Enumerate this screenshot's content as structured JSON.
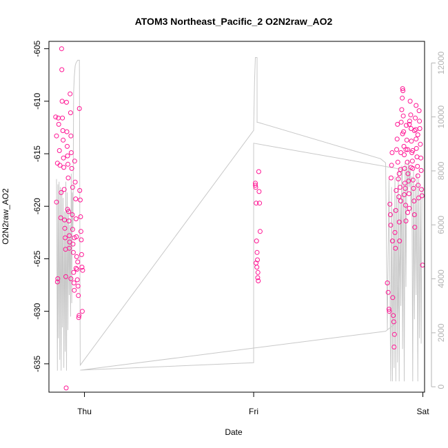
{
  "chart_data": {
    "type": "scatter",
    "title": "ATOM3 Northeast_Pacific_2 O2N2raw_AO2",
    "xlabel": "Date",
    "ylabel": "O2N2raw_AO2",
    "x_tick_labels": [
      "Thu",
      "Fri",
      "Sat"
    ],
    "x_tick_days": [
      1,
      2,
      3
    ],
    "xlim_days": [
      0.79,
      3.01
    ],
    "ylim": [
      -637.7,
      -604.3
    ],
    "y_ticks": [
      -605,
      -610,
      -615,
      -620,
      -625,
      -630,
      -635
    ],
    "y2lim": [
      -200,
      12800
    ],
    "y2_ticks": [
      0,
      2000,
      4000,
      6000,
      8000,
      10000,
      12000
    ],
    "grid": false,
    "colors": {
      "points": "#ff1493",
      "line": "#c8c8c8",
      "axis": "#000000",
      "axis2": "#b3b3b3"
    },
    "series": [
      {
        "kind": "points",
        "points": [
          [
            0.83,
            -611.5
          ],
          [
            0.835,
            -613.3
          ],
          [
            0.84,
            -615.9
          ],
          [
            0.835,
            -619.6
          ],
          [
            0.84,
            -627.2
          ],
          [
            0.842,
            -626.9
          ],
          [
            0.845,
            -611.6
          ],
          [
            0.848,
            -612.2
          ],
          [
            0.852,
            -614.7
          ],
          [
            0.855,
            -616.1
          ],
          [
            0.86,
            -621.1
          ],
          [
            0.862,
            -618.7
          ],
          [
            0.865,
            -605.0
          ],
          [
            0.866,
            -607.0
          ],
          [
            0.868,
            -610.0
          ],
          [
            0.87,
            -611.6
          ],
          [
            0.872,
            -612.8
          ],
          [
            0.874,
            -613.7
          ],
          [
            0.876,
            -615.4
          ],
          [
            0.878,
            -616.3
          ],
          [
            0.88,
            -618.4
          ],
          [
            0.882,
            -621.3
          ],
          [
            0.884,
            -622.1
          ],
          [
            0.886,
            -623.0
          ],
          [
            0.888,
            -624.1
          ],
          [
            0.89,
            -626.7
          ],
          [
            0.892,
            -637.3
          ],
          [
            0.894,
            -610.1
          ],
          [
            0.896,
            -612.9
          ],
          [
            0.898,
            -614.3
          ],
          [
            0.9,
            -615.2
          ],
          [
            0.902,
            -616.0
          ],
          [
            0.904,
            -617.3
          ],
          [
            0.906,
            -620.5
          ],
          [
            0.908,
            -621.4
          ],
          [
            0.91,
            -622.8
          ],
          [
            0.912,
            -623.4
          ],
          [
            0.915,
            -609.3
          ],
          [
            0.918,
            -611.1
          ],
          [
            0.92,
            -613.3
          ],
          [
            0.922,
            -614.9
          ],
          [
            0.925,
            -616.4
          ],
          [
            0.928,
            -620.8
          ],
          [
            0.93,
            -622.2
          ],
          [
            0.932,
            -623.6
          ],
          [
            0.934,
            -624.4
          ],
          [
            0.936,
            -626.3
          ],
          [
            0.938,
            -627.3
          ],
          [
            0.94,
            -628.0
          ],
          [
            0.942,
            -615.7
          ],
          [
            0.945,
            -617.7
          ],
          [
            0.948,
            -619.3
          ],
          [
            0.95,
            -621.2
          ],
          [
            0.952,
            -622.9
          ],
          [
            0.954,
            -624.8
          ],
          [
            0.956,
            -626.0
          ],
          [
            0.958,
            -627.0
          ],
          [
            0.96,
            -625.3
          ],
          [
            0.962,
            -627.6
          ],
          [
            0.964,
            -628.5
          ],
          [
            0.966,
            -630.6
          ],
          [
            0.968,
            -630.4
          ],
          [
            0.97,
            -610.7
          ],
          [
            0.972,
            -618.5
          ],
          [
            0.975,
            -619.4
          ],
          [
            0.977,
            -621.0
          ],
          [
            0.979,
            -622.4
          ],
          [
            0.981,
            -623.2
          ],
          [
            0.983,
            -624.6
          ],
          [
            0.985,
            -625.8
          ],
          [
            0.987,
            -630.0
          ],
          [
            0.989,
            -626.1
          ],
          [
            0.9,
            -620.3
          ],
          [
            0.91,
            -624.0
          ],
          [
            0.92,
            -626.9
          ],
          [
            0.93,
            -618.2
          ],
          [
            0.94,
            -623.0
          ],
          [
            0.95,
            -625.9
          ],
          [
            2.01,
            -617.8
          ],
          [
            2.012,
            -618.2
          ],
          [
            2.015,
            -619.7
          ],
          [
            2.017,
            -623.3
          ],
          [
            2.02,
            -624.4
          ],
          [
            2.022,
            -625.1
          ],
          [
            2.025,
            -626.3
          ],
          [
            2.027,
            -627.1
          ],
          [
            2.03,
            -616.7
          ],
          [
            2.032,
            -618.6
          ],
          [
            2.035,
            -619.7
          ],
          [
            2.038,
            -622.4
          ],
          [
            2.01,
            -618.0
          ],
          [
            2.014,
            -625.4
          ],
          [
            2.019,
            -625.8
          ],
          [
            2.024,
            -626.8
          ],
          [
            2.79,
            -627.3
          ],
          [
            2.795,
            -628.2
          ],
          [
            2.8,
            -629.8
          ],
          [
            2.802,
            -630.0
          ],
          [
            2.805,
            -619.8
          ],
          [
            2.808,
            -620.8
          ],
          [
            2.81,
            -621.8
          ],
          [
            2.812,
            -617.3
          ],
          [
            2.815,
            -616.1
          ],
          [
            2.818,
            -614.9
          ],
          [
            2.82,
            -623.3
          ],
          [
            2.822,
            -628.7
          ],
          [
            2.825,
            -630.4
          ],
          [
            2.828,
            -631.0
          ],
          [
            2.83,
            -633.4
          ],
          [
            2.832,
            -632.2
          ],
          [
            2.835,
            -622.5
          ],
          [
            2.838,
            -624.0
          ],
          [
            2.84,
            -620.4
          ],
          [
            2.842,
            -618.5
          ],
          [
            2.845,
            -614.6
          ],
          [
            2.848,
            -613.6
          ],
          [
            2.85,
            -612.2
          ],
          [
            2.852,
            -615.8
          ],
          [
            2.855,
            -617.4
          ],
          [
            2.858,
            -619.1
          ],
          [
            2.86,
            -621.5
          ],
          [
            2.862,
            -623.3
          ],
          [
            2.865,
            -618.2
          ],
          [
            2.868,
            -616.5
          ],
          [
            2.87,
            -614.9
          ],
          [
            2.872,
            -612.0
          ],
          [
            2.875,
            -610.8
          ],
          [
            2.878,
            -609.7
          ],
          [
            2.88,
            -608.8
          ],
          [
            2.882,
            -609.0
          ],
          [
            2.884,
            -611.4
          ],
          [
            2.886,
            -612.9
          ],
          [
            2.888,
            -614.3
          ],
          [
            2.89,
            -615.1
          ],
          [
            2.892,
            -616.4
          ],
          [
            2.894,
            -617.8
          ],
          [
            2.896,
            -618.3
          ],
          [
            2.898,
            -619.9
          ],
          [
            2.9,
            -621.4
          ],
          [
            2.902,
            -612.3
          ],
          [
            2.905,
            -613.7
          ],
          [
            2.908,
            -615.8
          ],
          [
            2.91,
            -614.6
          ],
          [
            2.912,
            -616.9
          ],
          [
            2.915,
            -617.6
          ],
          [
            2.918,
            -618.8
          ],
          [
            2.92,
            -620.2
          ],
          [
            2.922,
            -611.9
          ],
          [
            2.925,
            -610.0
          ],
          [
            2.928,
            -611.3
          ],
          [
            2.93,
            -612.6
          ],
          [
            2.932,
            -613.8
          ],
          [
            2.935,
            -614.9
          ],
          [
            2.938,
            -615.7
          ],
          [
            2.94,
            -616.4
          ],
          [
            2.942,
            -617.5
          ],
          [
            2.945,
            -618.3
          ],
          [
            2.948,
            -619.5
          ],
          [
            2.95,
            -620.8
          ],
          [
            2.952,
            -622.0
          ],
          [
            2.955,
            -611.6
          ],
          [
            2.958,
            -612.7
          ],
          [
            2.96,
            -613.6
          ],
          [
            2.962,
            -614.5
          ],
          [
            2.965,
            -615.3
          ],
          [
            2.968,
            -616.2
          ],
          [
            2.97,
            -617.1
          ],
          [
            2.972,
            -618.0
          ],
          [
            2.975,
            -619.2
          ],
          [
            2.978,
            -610.9
          ],
          [
            2.98,
            -611.9
          ],
          [
            2.982,
            -612.6
          ],
          [
            2.985,
            -614.1
          ],
          [
            2.988,
            -615.4
          ],
          [
            2.99,
            -616.6
          ],
          [
            2.992,
            -618.4
          ],
          [
            2.995,
            -619.0
          ],
          [
            2.998,
            -625.6
          ],
          [
            2.86,
            -616.9
          ],
          [
            2.87,
            -619.5
          ],
          [
            2.88,
            -613.1
          ],
          [
            2.89,
            -618.9
          ],
          [
            2.9,
            -614.6
          ],
          [
            2.91,
            -620.6
          ],
          [
            2.92,
            -612.2
          ],
          [
            2.93,
            -616.3
          ],
          [
            2.94,
            -614.7
          ],
          [
            2.95,
            -612.8
          ],
          [
            2.96,
            -610.4
          ],
          [
            2.97,
            -613.2
          ]
        ]
      },
      {
        "kind": "line",
        "axis": "right",
        "points": [
          [
            0.835,
            7700
          ],
          [
            0.84,
            600
          ],
          [
            0.843,
            7500
          ],
          [
            0.846,
            1800
          ],
          [
            0.85,
            7600
          ],
          [
            0.854,
            1000
          ],
          [
            0.858,
            7400
          ],
          [
            0.862,
            600
          ],
          [
            0.866,
            7300
          ],
          [
            0.87,
            2200
          ],
          [
            0.874,
            7000
          ],
          [
            0.878,
            700
          ],
          [
            0.882,
            6500
          ],
          [
            0.886,
            1300
          ],
          [
            0.89,
            7600
          ],
          [
            0.894,
            600
          ],
          [
            0.898,
            7200
          ],
          [
            0.902,
            2100
          ],
          [
            0.906,
            6600
          ],
          [
            0.91,
            3400
          ],
          [
            0.914,
            6000
          ],
          [
            0.918,
            2600
          ],
          [
            0.922,
            7900
          ],
          [
            0.925,
            3100
          ],
          [
            0.928,
            7200
          ],
          [
            0.932,
            5800
          ],
          [
            0.936,
            10900
          ],
          [
            0.94,
            11500
          ],
          [
            0.945,
            11900
          ],
          [
            0.95,
            12000
          ],
          [
            0.96,
            12100
          ],
          [
            0.965,
            12100
          ],
          [
            0.97,
            12100
          ],
          [
            0.975,
            800
          ],
          [
            2.0,
            9500
          ],
          [
            2.005,
            11300
          ],
          [
            2.01,
            12200
          ],
          [
            2.02,
            12200
          ],
          [
            2.02,
            9800
          ],
          [
            2.025,
            9800
          ],
          [
            2.75,
            8450
          ],
          [
            2.78,
            8300
          ],
          [
            2.79,
            2100
          ],
          [
            2.8,
            7700
          ],
          [
            2.81,
            200
          ],
          [
            2.815,
            7400
          ],
          [
            2.82,
            200
          ],
          [
            2.825,
            6600
          ],
          [
            2.83,
            700
          ],
          [
            2.835,
            7800
          ],
          [
            2.84,
            200
          ],
          [
            2.845,
            7100
          ],
          [
            2.85,
            900
          ],
          [
            2.855,
            8000
          ],
          [
            2.86,
            200
          ],
          [
            2.865,
            6800
          ],
          [
            2.87,
            3000
          ],
          [
            2.875,
            8200
          ],
          [
            2.88,
            1400
          ],
          [
            2.885,
            7500
          ],
          [
            2.89,
            200
          ],
          [
            2.895,
            8300
          ],
          [
            2.9,
            3700
          ],
          [
            2.905,
            8200
          ],
          [
            2.91,
            7200
          ],
          [
            2.915,
            8400
          ],
          [
            2.92,
            7400
          ],
          [
            2.925,
            8100
          ],
          [
            2.93,
            6500
          ],
          [
            2.935,
            7800
          ],
          [
            2.94,
            200
          ],
          [
            2.945,
            8000
          ],
          [
            2.95,
            2500
          ],
          [
            2.955,
            7500
          ],
          [
            2.96,
            3400
          ],
          [
            2.965,
            7900
          ],
          [
            2.97,
            200
          ],
          [
            2.975,
            7700
          ],
          [
            2.98,
            1800
          ],
          [
            2.985,
            7200
          ],
          [
            2.99,
            1600
          ],
          [
            2.995,
            7400
          ]
        ]
      },
      {
        "kind": "line",
        "axis": "left",
        "points": [
          [
            0.975,
            -635.6
          ],
          [
            2.0,
            -634.9
          ],
          [
            2.0,
            -614.0
          ],
          [
            2.88,
            -616.5
          ],
          [
            2.85,
            -631.0
          ],
          [
            2.78,
            -631.9
          ],
          [
            2.0,
            -633.5
          ],
          [
            0.98,
            -635.6
          ]
        ]
      }
    ]
  }
}
